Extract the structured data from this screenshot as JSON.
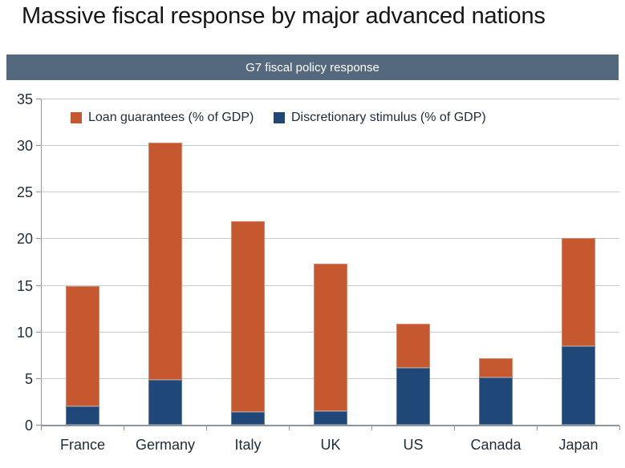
{
  "page": {
    "title": "Massive fiscal response by major advanced nations"
  },
  "theme": {
    "header_bg": "#54687E",
    "header_text": "#FFFFFF",
    "axis_text": "#1E2B3C",
    "gridline": "#C9C9C9",
    "axis_line": "#8E959C",
    "background": "#FFFFFF"
  },
  "chart_data": {
    "type": "bar",
    "stacked": true,
    "title": "G7 fiscal policy response",
    "categories": [
      "France",
      "Germany",
      "Italy",
      "UK",
      "US",
      "Canada",
      "Japan"
    ],
    "series": [
      {
        "name": "Discretionary stimulus (% of GDP)",
        "color": "#1F4878",
        "values": [
          2.0,
          4.8,
          1.4,
          1.5,
          6.1,
          5.1,
          8.4
        ]
      },
      {
        "name": "Loan guarantees (% of GDP)",
        "color": "#C5582E",
        "values": [
          12.9,
          25.5,
          20.4,
          15.8,
          4.7,
          2.0,
          11.6
        ]
      }
    ],
    "totals": [
      14.9,
      30.3,
      21.8,
      17.3,
      10.8,
      7.1,
      20.0
    ],
    "xlabel": "",
    "ylabel": "",
    "ylim": [
      0,
      35
    ],
    "yticks": [
      0,
      5,
      10,
      15,
      20,
      25,
      30,
      35
    ],
    "grid": true,
    "legend_position": "top-inside",
    "legend_order": [
      "Loan guarantees (% of GDP)",
      "Discretionary stimulus (% of GDP)"
    ]
  }
}
